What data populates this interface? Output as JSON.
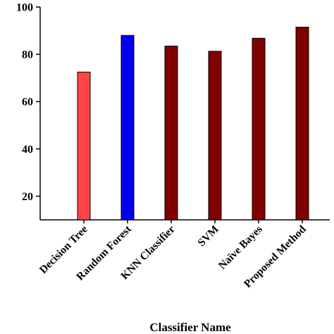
{
  "chart_data": {
    "type": "bar",
    "categories": [
      "Decision Tree",
      "Random Forest",
      "KNN Classifier",
      "SVM",
      "Naïve Bayes",
      "Proposed Method"
    ],
    "values": [
      72.5,
      88,
      83.5,
      81.3,
      86.8,
      91.5
    ],
    "bar_colors": [
      "#FF4444",
      "#0000EE",
      "#800000",
      "#800000",
      "#800000",
      "#800000"
    ],
    "xlabel": "Classifier Name",
    "ylabel": "",
    "ylim": [
      10,
      100
    ],
    "yticks": [
      20,
      40,
      60,
      80,
      100
    ],
    "grid": false
  }
}
